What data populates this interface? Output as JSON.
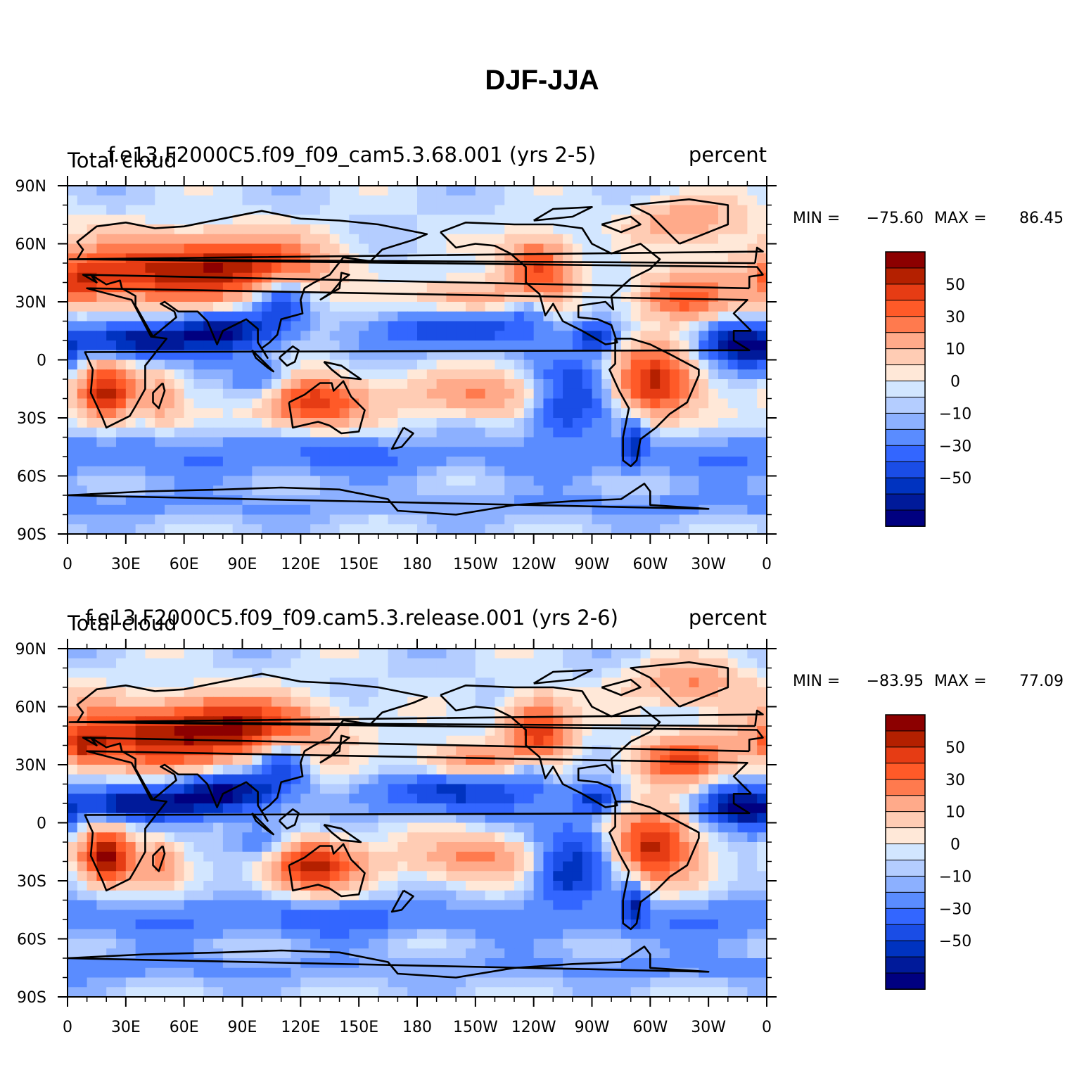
{
  "main_title": "DJF-JJA",
  "colorbar": {
    "colors": [
      "#000080",
      "#001a9a",
      "#0033c0",
      "#1a4de6",
      "#3366ff",
      "#5a8cff",
      "#8cb0ff",
      "#b4cdff",
      "#d2e6ff",
      "#ffe8d8",
      "#ffccb4",
      "#ffaa8a",
      "#ff7a4e",
      "#ff5a28",
      "#e63c14",
      "#b42000",
      "#8c0000"
    ],
    "tick_labels": [
      "50",
      "30",
      "10",
      "0",
      "−10",
      "−30",
      "−50"
    ]
  },
  "x_ticks": [
    "0",
    "30E",
    "60E",
    "90E",
    "120E",
    "150E",
    "180",
    "150W",
    "120W",
    "90W",
    "60W",
    "30W",
    "0"
  ],
  "y_ticks": [
    "90N",
    "60N",
    "30N",
    "0",
    "30S",
    "60S",
    "90S"
  ],
  "panels": [
    {
      "left_title": "Total cloud",
      "center_title": "f.e13.F2000C5.f09_f09_cam5.3.68.001 (yrs 2-5)",
      "right_title": "percent",
      "min_label": "MIN =",
      "min_value": "−75.60",
      "max_label": "MAX =",
      "max_value": "86.45"
    },
    {
      "left_title": "Total cloud",
      "center_title": "f.e13.F2000C5.f09_f09.cam5.3.release.001 (yrs 2-6)",
      "right_title": "percent",
      "min_label": "MIN =",
      "min_value": "−83.95",
      "max_label": "MAX =",
      "max_value": "77.09"
    }
  ]
}
